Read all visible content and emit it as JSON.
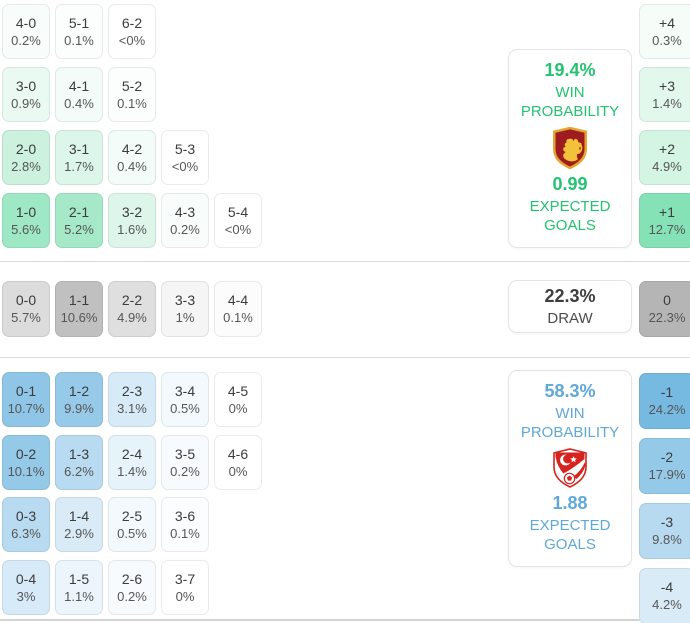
{
  "colors": {
    "home_accent": "#25c271",
    "away_accent": "#5fa8d7",
    "cell_score_color": "#3c3c3c",
    "cell_pct_color": "#565656",
    "divider_color": "#dcdcdc",
    "crest_shield_red": "#9e1b20",
    "crest_lion_gold": "#f2c23a",
    "crest_turkey_red": "#d6231f"
  },
  "home": {
    "panel": {
      "win_probability": "19.4%",
      "win_label_line1": "WIN",
      "win_label_line2": "PROBABILITY",
      "expected_goals": "0.99",
      "goals_label_line1": "EXPECTED",
      "goals_label_line2": "GOALS",
      "crest_icon": "home-team-crest"
    },
    "rows": [
      [
        {
          "score": "4-0",
          "pct": "0.2%",
          "bg": "#f8fdfb"
        },
        {
          "score": "5-1",
          "pct": "0.1%",
          "bg": "#fbfefc"
        },
        {
          "score": "6-2",
          "pct": "<0%",
          "bg": "#ffffff"
        }
      ],
      [
        {
          "score": "3-0",
          "pct": "0.9%",
          "bg": "#eafaf2"
        },
        {
          "score": "4-1",
          "pct": "0.4%",
          "bg": "#f3fcf8"
        },
        {
          "score": "5-2",
          "pct": "0.1%",
          "bg": "#fbfefc"
        }
      ],
      [
        {
          "score": "2-0",
          "pct": "2.8%",
          "bg": "#ccf1df"
        },
        {
          "score": "3-1",
          "pct": "1.7%",
          "bg": "#dcf6e9"
        },
        {
          "score": "4-2",
          "pct": "0.4%",
          "bg": "#f3fcf8"
        },
        {
          "score": "5-3",
          "pct": "<0%",
          "bg": "#ffffff"
        }
      ],
      [
        {
          "score": "1-0",
          "pct": "5.6%",
          "bg": "#9fe8c5"
        },
        {
          "score": "2-1",
          "pct": "5.2%",
          "bg": "#a5e9c8"
        },
        {
          "score": "3-2",
          "pct": "1.6%",
          "bg": "#def6ea"
        },
        {
          "score": "4-3",
          "pct": "0.2%",
          "bg": "#f8fdfb"
        },
        {
          "score": "5-4",
          "pct": "<0%",
          "bg": "#ffffff"
        }
      ]
    ],
    "deltas": [
      {
        "label": "+4",
        "pct": "0.3%",
        "bg": "#f6fdf9"
      },
      {
        "label": "+3",
        "pct": "1.4%",
        "bg": "#e3f8ed"
      },
      {
        "label": "+2",
        "pct": "4.9%",
        "bg": "#d4f4e4"
      },
      {
        "label": "+1",
        "pct": "12.7%",
        "bg": "#85e1b6"
      }
    ]
  },
  "draw": {
    "panel": {
      "probability": "22.3%",
      "label": "DRAW"
    },
    "cells": [
      {
        "score": "0-0",
        "pct": "5.7%",
        "bg": "#dcdcdc"
      },
      {
        "score": "1-1",
        "pct": "10.6%",
        "bg": "#c0c0c0"
      },
      {
        "score": "2-2",
        "pct": "4.9%",
        "bg": "#dfdfdf"
      },
      {
        "score": "3-3",
        "pct": "1%",
        "bg": "#f5f5f5"
      },
      {
        "score": "4-4",
        "pct": "0.1%",
        "bg": "#fcfcfc"
      }
    ],
    "delta": {
      "label": "0",
      "pct": "22.3%",
      "bg": "#b5b5b5"
    }
  },
  "away": {
    "panel": {
      "win_probability": "58.3%",
      "win_label_line1": "WIN",
      "win_label_line2": "PROBABILITY",
      "expected_goals": "1.88",
      "goals_label_line1": "EXPECTED",
      "goals_label_line2": "GOALS",
      "crest_icon": "away-team-crest"
    },
    "rows": [
      [
        {
          "score": "0-1",
          "pct": "10.7%",
          "bg": "#8fc6e7"
        },
        {
          "score": "1-2",
          "pct": "9.9%",
          "bg": "#97cae9"
        },
        {
          "score": "2-3",
          "pct": "3.1%",
          "bg": "#d6eaf7"
        },
        {
          "score": "3-4",
          "pct": "0.5%",
          "bg": "#f3f9fd"
        },
        {
          "score": "4-5",
          "pct": "0%",
          "bg": "#ffffff"
        }
      ],
      [
        {
          "score": "0-2",
          "pct": "10.1%",
          "bg": "#95c9e8"
        },
        {
          "score": "1-3",
          "pct": "6.2%",
          "bg": "#b9dbf1"
        },
        {
          "score": "2-4",
          "pct": "1.4%",
          "bg": "#e7f3fa"
        },
        {
          "score": "3-5",
          "pct": "0.2%",
          "bg": "#f8fbfe"
        },
        {
          "score": "4-6",
          "pct": "0%",
          "bg": "#ffffff"
        }
      ],
      [
        {
          "score": "0-3",
          "pct": "6.3%",
          "bg": "#b8dbf1"
        },
        {
          "score": "1-4",
          "pct": "2.9%",
          "bg": "#d8ebf7"
        },
        {
          "score": "2-5",
          "pct": "0.5%",
          "bg": "#f3f9fd"
        },
        {
          "score": "3-6",
          "pct": "0.1%",
          "bg": "#fbfdfe"
        }
      ],
      [
        {
          "score": "0-4",
          "pct": "3%",
          "bg": "#d7eaf7"
        },
        {
          "score": "1-5",
          "pct": "1.1%",
          "bg": "#ebf5fb"
        },
        {
          "score": "2-6",
          "pct": "0.2%",
          "bg": "#f8fbfe"
        },
        {
          "score": "3-7",
          "pct": "0%",
          "bg": "#ffffff"
        }
      ]
    ],
    "deltas": [
      {
        "label": "-1",
        "pct": "24.2%",
        "bg": "#76bae1"
      },
      {
        "label": "-2",
        "pct": "17.9%",
        "bg": "#95c9e8"
      },
      {
        "label": "-3",
        "pct": "9.8%",
        "bg": "#b7daf0"
      },
      {
        "label": "-4",
        "pct": "4.2%",
        "bg": "#d9ebf7"
      }
    ]
  }
}
